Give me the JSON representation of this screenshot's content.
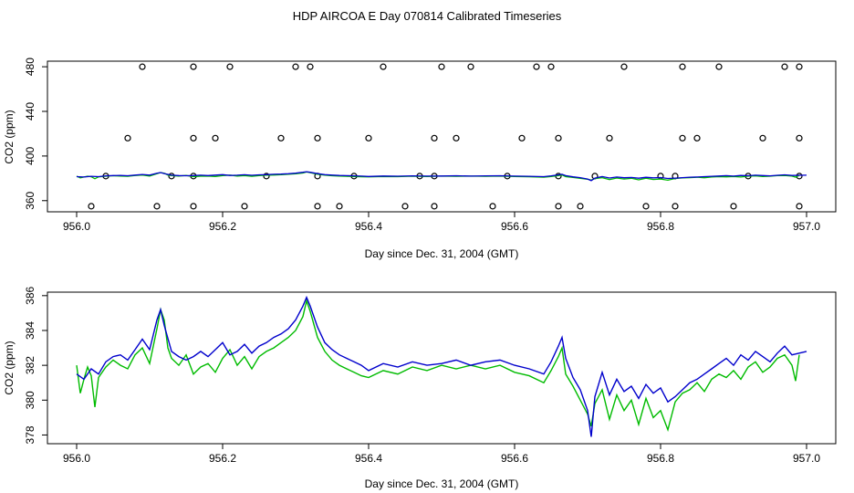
{
  "title": "HDP AIRCOA E  Day 070814  Calibrated Timeseries",
  "colors": {
    "blue": "#0000cc",
    "green": "#00bb00",
    "black": "#000000"
  },
  "chart_data": [
    {
      "type": "scatter",
      "xlabel": "Day since Dec. 31, 2004 (GMT)",
      "ylabel": "CO2 (ppm)",
      "xlim": [
        956.0,
        957.0
      ],
      "ylim": [
        350,
        485
      ],
      "xticks": [
        "956.0",
        "956.2",
        "956.4",
        "956.6",
        "956.8",
        "957.0"
      ],
      "yticks": [
        "360",
        "400",
        "440",
        "480"
      ],
      "grid": false,
      "points": [
        {
          "x": 956.09,
          "y": 480
        },
        {
          "x": 956.16,
          "y": 480
        },
        {
          "x": 956.21,
          "y": 480
        },
        {
          "x": 956.3,
          "y": 480
        },
        {
          "x": 956.32,
          "y": 480
        },
        {
          "x": 956.42,
          "y": 480
        },
        {
          "x": 956.5,
          "y": 480
        },
        {
          "x": 956.54,
          "y": 480
        },
        {
          "x": 956.63,
          "y": 480
        },
        {
          "x": 956.65,
          "y": 480
        },
        {
          "x": 956.75,
          "y": 480
        },
        {
          "x": 956.83,
          "y": 480
        },
        {
          "x": 956.88,
          "y": 480
        },
        {
          "x": 956.97,
          "y": 480
        },
        {
          "x": 956.99,
          "y": 480
        },
        {
          "x": 956.07,
          "y": 416
        },
        {
          "x": 956.16,
          "y": 416
        },
        {
          "x": 956.19,
          "y": 416
        },
        {
          "x": 956.28,
          "y": 416
        },
        {
          "x": 956.33,
          "y": 416
        },
        {
          "x": 956.4,
          "y": 416
        },
        {
          "x": 956.49,
          "y": 416
        },
        {
          "x": 956.52,
          "y": 416
        },
        {
          "x": 956.61,
          "y": 416
        },
        {
          "x": 956.66,
          "y": 416
        },
        {
          "x": 956.73,
          "y": 416
        },
        {
          "x": 956.83,
          "y": 416
        },
        {
          "x": 956.85,
          "y": 416
        },
        {
          "x": 956.94,
          "y": 416
        },
        {
          "x": 956.99,
          "y": 416
        },
        {
          "x": 956.04,
          "y": 382
        },
        {
          "x": 956.13,
          "y": 382
        },
        {
          "x": 956.16,
          "y": 382
        },
        {
          "x": 956.26,
          "y": 382
        },
        {
          "x": 956.33,
          "y": 382
        },
        {
          "x": 956.38,
          "y": 382
        },
        {
          "x": 956.47,
          "y": 382
        },
        {
          "x": 956.49,
          "y": 382
        },
        {
          "x": 956.59,
          "y": 382
        },
        {
          "x": 956.66,
          "y": 382
        },
        {
          "x": 956.71,
          "y": 382
        },
        {
          "x": 956.8,
          "y": 382
        },
        {
          "x": 956.82,
          "y": 382
        },
        {
          "x": 956.92,
          "y": 382
        },
        {
          "x": 956.99,
          "y": 382
        },
        {
          "x": 956.02,
          "y": 355
        },
        {
          "x": 956.11,
          "y": 355
        },
        {
          "x": 956.16,
          "y": 355
        },
        {
          "x": 956.23,
          "y": 355
        },
        {
          "x": 956.33,
          "y": 355
        },
        {
          "x": 956.36,
          "y": 355
        },
        {
          "x": 956.45,
          "y": 355
        },
        {
          "x": 956.49,
          "y": 355
        },
        {
          "x": 956.57,
          "y": 355
        },
        {
          "x": 956.66,
          "y": 355
        },
        {
          "x": 956.69,
          "y": 355
        },
        {
          "x": 956.78,
          "y": 355
        },
        {
          "x": 956.82,
          "y": 355
        },
        {
          "x": 956.9,
          "y": 355
        },
        {
          "x": 956.99,
          "y": 355
        }
      ]
    },
    {
      "type": "line",
      "xlabel": "Day since Dec. 31, 2004 (GMT)",
      "ylabel": "CO2 (ppm)",
      "xlim": [
        956.0,
        957.0
      ],
      "ylim": [
        377.5,
        386.2
      ],
      "xticks": [
        "956.0",
        "956.2",
        "956.4",
        "956.6",
        "956.8",
        "957.0"
      ],
      "yticks": [
        "378",
        "380",
        "382",
        "384",
        "386"
      ],
      "grid": false,
      "series": [
        {
          "color": "blue",
          "x": [
            956.0,
            956.01,
            956.02,
            956.03,
            956.04,
            956.05,
            956.06,
            956.07,
            956.08,
            956.09,
            956.1,
            956.11,
            956.115,
            956.12,
            956.13,
            956.14,
            956.15,
            956.16,
            956.17,
            956.18,
            956.19,
            956.2,
            956.21,
            956.22,
            956.23,
            956.24,
            956.25,
            956.26,
            956.27,
            956.28,
            956.29,
            956.3,
            956.31,
            956.315,
            956.32,
            956.33,
            956.34,
            956.35,
            956.36,
            956.37,
            956.38,
            956.39,
            956.4,
            956.42,
            956.44,
            956.46,
            956.48,
            956.5,
            956.52,
            956.54,
            956.56,
            956.58,
            956.6,
            956.62,
            956.64,
            956.65,
            956.66,
            956.665,
            956.67,
            956.68,
            956.69,
            956.7,
            956.705,
            956.71,
            956.72,
            956.73,
            956.74,
            956.75,
            956.76,
            956.77,
            956.78,
            956.79,
            956.8,
            956.81,
            956.82,
            956.83,
            956.84,
            956.85,
            956.86,
            956.87,
            956.88,
            956.89,
            956.9,
            956.91,
            956.92,
            956.93,
            956.94,
            956.95,
            956.96,
            956.97,
            956.98,
            956.99,
            957.0
          ],
          "y": [
            381.5,
            381.2,
            381.8,
            381.5,
            382.2,
            382.5,
            382.6,
            382.3,
            382.9,
            383.5,
            382.9,
            384.6,
            385.2,
            384.3,
            382.8,
            382.5,
            382.3,
            382.5,
            382.8,
            382.5,
            382.9,
            383.3,
            382.6,
            382.8,
            383.2,
            382.7,
            383.1,
            383.3,
            383.6,
            383.8,
            384.1,
            384.6,
            385.4,
            385.9,
            385.4,
            384.2,
            383.3,
            382.9,
            382.6,
            382.4,
            382.2,
            382.0,
            381.7,
            382.1,
            381.9,
            382.2,
            382.0,
            382.1,
            382.3,
            382.0,
            382.2,
            382.3,
            382.0,
            381.8,
            381.5,
            382.2,
            383.1,
            383.6,
            382.4,
            381.3,
            380.6,
            379.4,
            377.9,
            380.2,
            381.6,
            380.3,
            381.2,
            380.5,
            380.8,
            380.1,
            380.9,
            380.4,
            380.7,
            379.9,
            380.2,
            380.6,
            381.0,
            381.2,
            381.5,
            381.8,
            382.1,
            382.4,
            382.0,
            382.6,
            382.3,
            382.8,
            382.5,
            382.2,
            382.7,
            383.1,
            382.6,
            382.7,
            382.8
          ]
        },
        {
          "color": "green",
          "x": [
            956.0,
            956.005,
            956.01,
            956.015,
            956.02,
            956.025,
            956.03,
            956.04,
            956.05,
            956.06,
            956.07,
            956.08,
            956.09,
            956.1,
            956.11,
            956.115,
            956.12,
            956.125,
            956.13,
            956.14,
            956.15,
            956.16,
            956.17,
            956.18,
            956.19,
            956.2,
            956.21,
            956.22,
            956.23,
            956.24,
            956.25,
            956.26,
            956.27,
            956.28,
            956.29,
            956.3,
            956.31,
            956.315,
            956.32,
            956.33,
            956.34,
            956.35,
            956.36,
            956.37,
            956.38,
            956.39,
            956.4,
            956.42,
            956.44,
            956.46,
            956.48,
            956.5,
            956.52,
            956.54,
            956.56,
            956.58,
            956.6,
            956.62,
            956.64,
            956.65,
            956.66,
            956.665,
            956.67,
            956.68,
            956.69,
            956.7,
            956.705,
            956.71,
            956.72,
            956.73,
            956.74,
            956.75,
            956.76,
            956.77,
            956.78,
            956.79,
            956.8,
            956.81,
            956.82,
            956.83,
            956.84,
            956.85,
            956.86,
            956.87,
            956.88,
            956.89,
            956.9,
            956.91,
            956.92,
            956.93,
            956.94,
            956.95,
            956.96,
            956.97,
            956.98,
            956.985,
            956.99
          ],
          "y": [
            382.0,
            380.4,
            381.2,
            381.9,
            381.4,
            379.6,
            381.3,
            381.9,
            382.3,
            382.0,
            381.8,
            382.6,
            383.0,
            382.1,
            384.1,
            385.2,
            384.6,
            383.0,
            382.4,
            382.0,
            382.6,
            381.5,
            381.9,
            382.1,
            381.6,
            382.4,
            382.9,
            382.0,
            382.5,
            381.8,
            382.5,
            382.8,
            383.0,
            383.3,
            383.6,
            384.0,
            384.8,
            385.7,
            385.1,
            383.6,
            382.8,
            382.3,
            382.0,
            381.8,
            381.6,
            381.4,
            381.3,
            381.7,
            381.5,
            381.9,
            381.7,
            382.0,
            381.8,
            382.0,
            381.8,
            382.0,
            381.6,
            381.4,
            381.0,
            381.7,
            382.5,
            383.0,
            381.5,
            380.8,
            380.0,
            379.2,
            378.5,
            379.8,
            380.6,
            378.9,
            380.3,
            379.4,
            380.0,
            378.6,
            380.1,
            379.0,
            379.4,
            378.3,
            379.9,
            380.4,
            380.6,
            381.0,
            380.5,
            381.2,
            381.5,
            381.3,
            381.7,
            381.2,
            381.9,
            382.2,
            381.6,
            381.9,
            382.4,
            382.6,
            382.0,
            381.1,
            382.6
          ]
        }
      ]
    }
  ]
}
